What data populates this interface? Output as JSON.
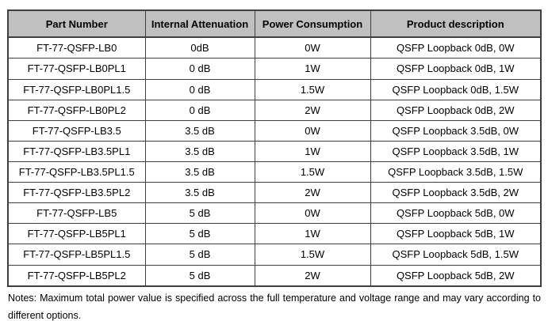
{
  "table": {
    "headers": [
      "Part Number",
      "Internal Attenuation",
      "Power Consumption",
      "Product description"
    ],
    "rows": [
      [
        "FT-77-QSFP-LB0",
        "0dB",
        "0W",
        "QSFP Loopback 0dB,  0W"
      ],
      [
        "FT-77-QSFP-LB0PL1",
        "0 dB",
        "1W",
        "QSFP Loopback 0dB,  1W"
      ],
      [
        "FT-77-QSFP-LB0PL1.5",
        "0 dB",
        "1.5W",
        "QSFP Loopback 0dB,  1.5W"
      ],
      [
        "FT-77-QSFP-LB0PL2",
        "0 dB",
        "2W",
        "QSFP Loopback 0dB,  2W"
      ],
      [
        "FT-77-QSFP-LB3.5",
        "3.5 dB",
        "0W",
        "QSFP Loopback 3.5dB,  0W"
      ],
      [
        "FT-77-QSFP-LB3.5PL1",
        "3.5 dB",
        "1W",
        "QSFP Loopback 3.5dB,  1W"
      ],
      [
        "FT-77-QSFP-LB3.5PL1.5",
        "3.5 dB",
        "1.5W",
        "QSFP Loopback 3.5dB,  1.5W"
      ],
      [
        "FT-77-QSFP-LB3.5PL2",
        "3.5 dB",
        "2W",
        "QSFP Loopback 3.5dB,  2W"
      ],
      [
        "FT-77-QSFP-LB5",
        "5 dB",
        "0W",
        "QSFP Loopback 5dB,  0W"
      ],
      [
        "FT-77-QSFP-LB5PL1",
        "5 dB",
        "1W",
        "QSFP Loopback 5dB,  1W"
      ],
      [
        "FT-77-QSFP-LB5PL1.5",
        "5 dB",
        "1.5W",
        "QSFP Loopback 5dB,  1.5W"
      ],
      [
        "FT-77-QSFP-LB5PL2",
        "5 dB",
        "2W",
        "QSFP Loopback 5dB,  2W"
      ]
    ]
  },
  "notes": {
    "line1": "Notes: Maximum total power value is specified across the full temperature and voltage range and may vary according to",
    "line2": "different options."
  },
  "colors": {
    "header_bg": "#c0c0c0",
    "border": "#3f3f3f",
    "text": "#000000",
    "page_bg": "#ffffff"
  }
}
